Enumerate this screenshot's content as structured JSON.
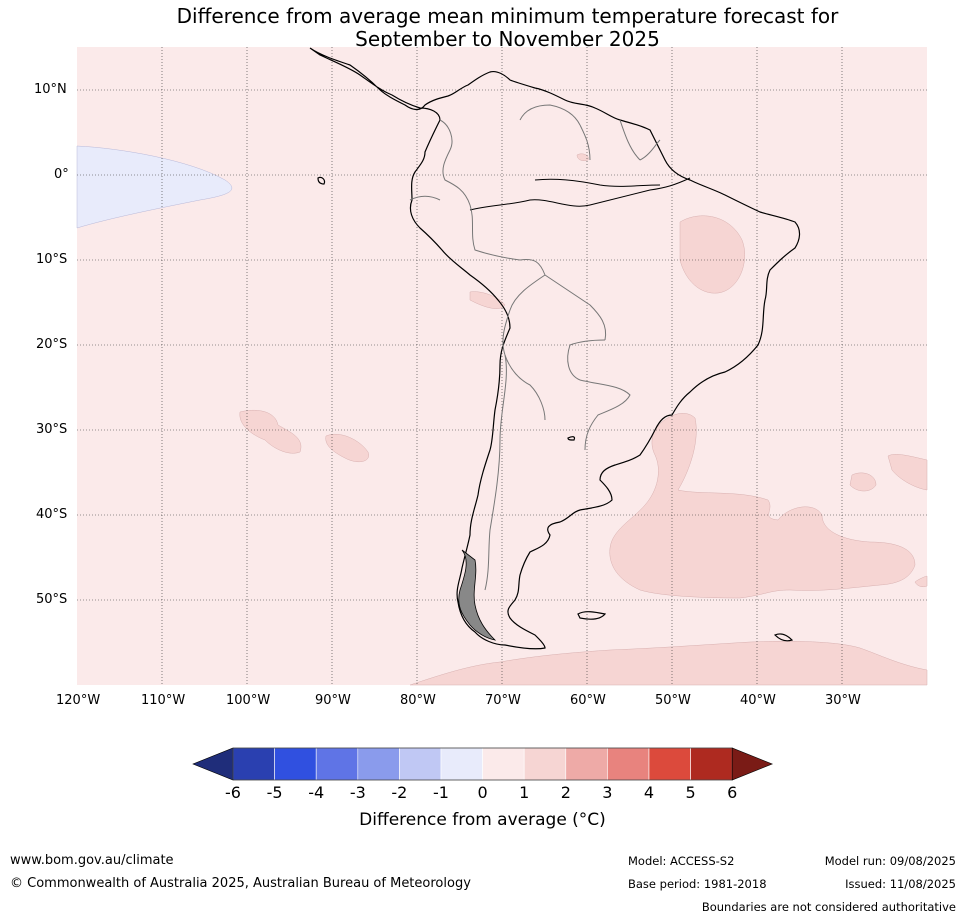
{
  "title_line1": "Difference from average mean minimum temperature forecast for",
  "title_line2": "September to November 2025",
  "lat_labels": [
    "10°N",
    "0°",
    "10°S",
    "20°S",
    "30°S",
    "40°S",
    "50°S"
  ],
  "lon_labels": [
    "120°W",
    "110°W",
    "100°W",
    "90°W",
    "80°W",
    "70°W",
    "60°W",
    "50°W",
    "40°W",
    "30°W"
  ],
  "colorbar": {
    "ticks": [
      "-6",
      "-5",
      "-4",
      "-3",
      "-2",
      "-1",
      "0",
      "1",
      "2",
      "3",
      "4",
      "5",
      "6"
    ],
    "colors": [
      "#1f2d7a",
      "#2a40b0",
      "#3050e0",
      "#5f74e6",
      "#8a9bec",
      "#c0c8f4",
      "#e8ebfb",
      "#fbeaea",
      "#f6d5d3",
      "#eeaaa7",
      "#e8837e",
      "#dc4a3c",
      "#ae2a20",
      "#7a1b16"
    ],
    "label": "Difference from average (°C)"
  },
  "footer": {
    "url": "www.bom.gov.au/climate",
    "copyright": "© Commonwealth of Australia 2025, Australian Bureau of Meteorology",
    "model": "Model: ACCESS-S2",
    "base_period": "Base period: 1981-2018",
    "model_run": "Model run: 09/08/2025",
    "issued": "Issued: 11/08/2025",
    "disclaimer": "Boundaries are not considered authoritative"
  }
}
